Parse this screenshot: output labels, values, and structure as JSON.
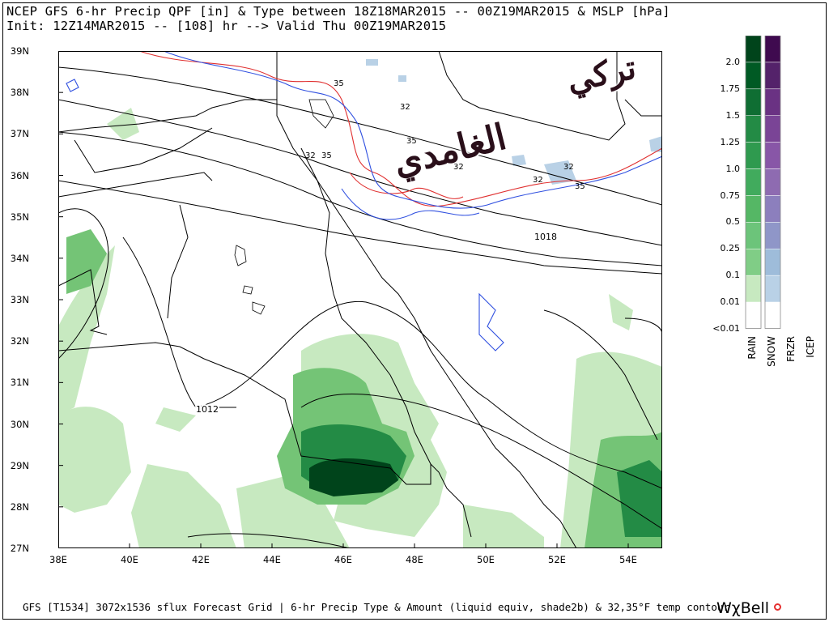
{
  "header": {
    "line1": "NCEP GFS 6-hr Precip QPF [in] & Type between 18Z18MAR2015 -- 00Z19MAR2015 & MSLP [hPa]",
    "line2": "Init: 12Z14MAR2015 -- [108] hr --> Valid Thu 00Z19MAR2015"
  },
  "map": {
    "lat_labels": [
      "39N",
      "38N",
      "37N",
      "36N",
      "35N",
      "34N",
      "33N",
      "32N",
      "31N",
      "30N",
      "29N",
      "28N",
      "27N"
    ],
    "lon_labels": [
      "38E",
      "40E",
      "42E",
      "44E",
      "46E",
      "48E",
      "50E",
      "52E",
      "54E"
    ],
    "isobar_labels": [
      "1018",
      "1012"
    ],
    "temp_labels": [
      "35",
      "32",
      "32",
      "35",
      "35",
      "32",
      "32",
      "32",
      "35"
    ],
    "colors": {
      "rain_light": "#c7e9c0",
      "rain_mid": "#74c476",
      "rain_heavy": "#00441b",
      "contour_32": "#3050e0",
      "contour_35": "#e03030",
      "isobar": "#000000"
    }
  },
  "legend": {
    "values": [
      "2.0",
      "1.75",
      "1.5",
      "1.25",
      "1.0",
      "0.75",
      "0.5",
      "0.25",
      "0.1",
      "0.01",
      "<0.01"
    ],
    "categories": [
      "RAIN",
      "SNOW",
      "FRZR",
      "ICEP"
    ],
    "rain_colors": [
      "#00441b",
      "#005a24",
      "#0f6e33",
      "#238b45",
      "#2f9a4f",
      "#41ab5d",
      "#55b765",
      "#6cc47a",
      "#80cd86",
      "#c7e9c0",
      "#ffffff"
    ],
    "snow_colors": [
      "#3f0a4f",
      "#54226a",
      "#6a3283",
      "#7a4496",
      "#8856a7",
      "#8e6bb1",
      "#8c7fbd",
      "#8f96c8",
      "#9ebcda",
      "#b9d1e6",
      "#ffffff"
    ]
  },
  "footer": {
    "text": "GFS [T1534] 3072x1536 sflux Forecast Grid | 6-hr Precip Type & Amount (liquid equiv, shade2b) & 32,35°F temp contour",
    "brand": "WχBell"
  },
  "watermark": {
    "line1": "تركي",
    "line2": "الغامدي"
  }
}
